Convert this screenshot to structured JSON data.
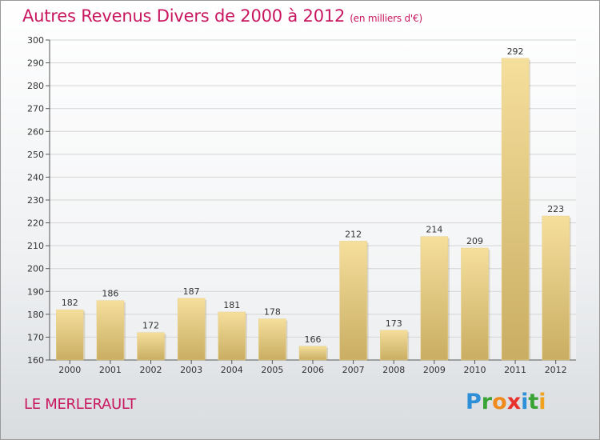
{
  "header": {
    "title": "Autres Revenus Divers de 2000 à 2012",
    "subtitle": "(en milliers d'€)"
  },
  "footer": {
    "place": "LE MERLERAULT",
    "logo_letters": [
      "P",
      "r",
      "o",
      "x",
      "i",
      "t",
      "i"
    ],
    "logo_colors": [
      "#2e8fd9",
      "#3aa335",
      "#f08a1c",
      "#e8312d",
      "#2e8fd9",
      "#3aa335",
      "#f0a21c"
    ]
  },
  "colors": {
    "bar_light": "#f5df9c",
    "bar_dark": "#c9ad62",
    "title": "#c8175f"
  },
  "chart_data": {
    "type": "bar",
    "categories": [
      "2000",
      "2001",
      "2002",
      "2003",
      "2004",
      "2005",
      "2006",
      "2007",
      "2008",
      "2009",
      "2010",
      "2011",
      "2012"
    ],
    "values": [
      182,
      186,
      172,
      187,
      181,
      178,
      166,
      212,
      173,
      214,
      209,
      292,
      223
    ],
    "ylim": [
      160,
      300
    ],
    "yticks": [
      160,
      170,
      180,
      190,
      200,
      210,
      220,
      230,
      240,
      250,
      260,
      270,
      280,
      290,
      300
    ],
    "grid": true,
    "data_labels": true
  }
}
